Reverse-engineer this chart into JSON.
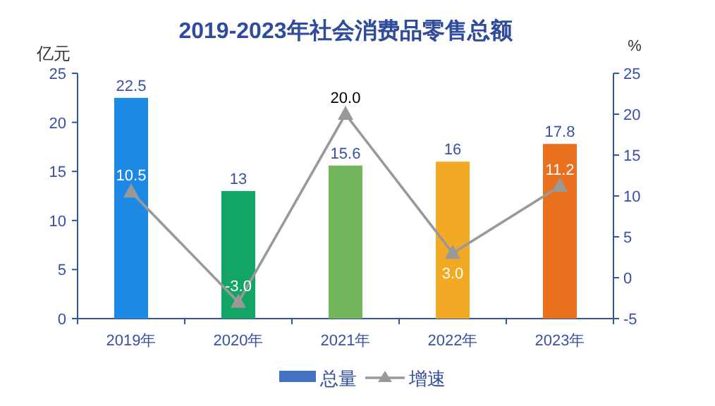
{
  "chart_data": {
    "type": "bar",
    "title": "2019-2023年社会消费品零售总额",
    "ylabel": "亿元",
    "y2label": "%",
    "categories": [
      "2019年",
      "2020年",
      "2021年",
      "2022年",
      "2023年"
    ],
    "series": [
      {
        "name": "总量",
        "color": "#4472c4",
        "colors": [
          "#1e88e5",
          "#12a565",
          "#72b55a",
          "#f2aa24",
          "#e8701e"
        ],
        "values": [
          22.5,
          13,
          15.6,
          16,
          17.8
        ]
      },
      {
        "name": "增速",
        "type": "line",
        "axis": "y2",
        "color": "#999999",
        "marker": "triangle",
        "values": [
          10.5,
          -3,
          20,
          3,
          11.2
        ],
        "value_labels": [
          "10.5",
          "-3.0",
          "20.0",
          "3.0",
          "11.2"
        ]
      }
    ],
    "ylim": [
      0,
      25
    ],
    "yticks": [
      0,
      5,
      10,
      15,
      20,
      25
    ],
    "y2lim": [
      -5,
      25
    ],
    "y2ticks": [
      -5,
      0,
      5,
      10,
      15,
      20,
      25
    ],
    "data_labels": true,
    "grid": false,
    "legend": "bottom"
  }
}
